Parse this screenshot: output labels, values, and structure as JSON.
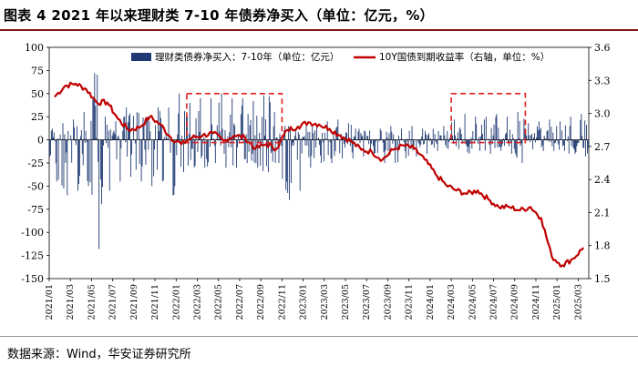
{
  "page": {
    "title": "图表 4   2021 年以来理财类 7-10 年债券净买入（单位：亿元，%）",
    "source": "数据来源：Wind，华安证券研究所"
  },
  "colors": {
    "bar": "#1f3a73",
    "line": "#c00000",
    "box": "#e02020"
  },
  "chart_data": {
    "type": "bar+line",
    "title": "2021 年以来理财类 7-10 年债券净买入（单位：亿元，%）",
    "x_ticks": [
      "2021/01",
      "2021/03",
      "2021/05",
      "2021/07",
      "2021/09",
      "2021/11",
      "2022/01",
      "2022/03",
      "2022/05",
      "2022/07",
      "2022/09",
      "2022/11",
      "2023/01",
      "2023/03",
      "2023/05",
      "2023/07",
      "2023/09",
      "2023/11",
      "2024/01",
      "2024/03",
      "2024/05",
      "2024/07",
      "2024/09",
      "2024/11",
      "2025/01",
      "2025/03"
    ],
    "y_left": {
      "min": -150,
      "max": 100,
      "ticks": [
        100,
        75,
        50,
        25,
        0,
        -25,
        -50,
        -75,
        -100,
        -125,
        -150
      ]
    },
    "y_right": {
      "min": 1.5,
      "max": 3.6,
      "ticks": [
        "3.6",
        "3.3",
        "3.0",
        "2.7",
        "2.4",
        "2.1",
        "1.8",
        "1.5"
      ]
    },
    "legend": [
      "理财类债券净买入：7-10年（单位：亿元）",
      "10Y国债到期收益率（右轴，单位：%）"
    ],
    "series": [
      {
        "name": "理财类债券净买入：7-10年（单位：亿元）",
        "axis": "left",
        "type": "bar",
        "note": "daily net purchases; envelope approximated per month",
        "monthly_envelope": [
          {
            "m": "2021/01",
            "hi": 12,
            "lo": -45
          },
          {
            "m": "2021/02",
            "hi": 18,
            "lo": -60
          },
          {
            "m": "2021/03",
            "hi": 22,
            "lo": -55
          },
          {
            "m": "2021/04",
            "hi": 30,
            "lo": -50
          },
          {
            "m": "2021/05",
            "hi": 72,
            "lo": -118
          },
          {
            "m": "2021/06",
            "hi": 25,
            "lo": -55
          },
          {
            "m": "2021/07",
            "hi": 20,
            "lo": -45
          },
          {
            "m": "2021/08",
            "hi": 35,
            "lo": -40
          },
          {
            "m": "2021/09",
            "hi": 30,
            "lo": -45
          },
          {
            "m": "2021/10",
            "hi": 25,
            "lo": -50
          },
          {
            "m": "2021/11",
            "hi": 35,
            "lo": -45
          },
          {
            "m": "2021/12",
            "hi": 35,
            "lo": -60
          },
          {
            "m": "2022/01",
            "hi": 50,
            "lo": -35
          },
          {
            "m": "2022/02",
            "hi": 40,
            "lo": -30
          },
          {
            "m": "2022/03",
            "hi": 45,
            "lo": -30
          },
          {
            "m": "2022/04",
            "hi": 45,
            "lo": -25
          },
          {
            "m": "2022/05",
            "hi": 50,
            "lo": -30
          },
          {
            "m": "2022/06",
            "hi": 45,
            "lo": -30
          },
          {
            "m": "2022/07",
            "hi": 45,
            "lo": -25
          },
          {
            "m": "2022/08",
            "hi": 42,
            "lo": -30
          },
          {
            "m": "2022/09",
            "hi": 48,
            "lo": -35
          },
          {
            "m": "2022/10",
            "hi": 30,
            "lo": -25
          },
          {
            "m": "2022/11",
            "hi": 15,
            "lo": -65
          },
          {
            "m": "2022/12",
            "hi": 10,
            "lo": -55
          },
          {
            "m": "2023/01",
            "hi": 18,
            "lo": -30
          },
          {
            "m": "2023/02",
            "hi": 15,
            "lo": -25
          },
          {
            "m": "2023/03",
            "hi": 20,
            "lo": -25
          },
          {
            "m": "2023/04",
            "hi": 22,
            "lo": -20
          },
          {
            "m": "2023/05",
            "hi": 18,
            "lo": -20
          },
          {
            "m": "2023/06",
            "hi": 12,
            "lo": -18
          },
          {
            "m": "2023/07",
            "hi": 10,
            "lo": -15
          },
          {
            "m": "2023/08",
            "hi": 12,
            "lo": -25
          },
          {
            "m": "2023/09",
            "hi": 15,
            "lo": -25
          },
          {
            "m": "2023/10",
            "hi": 12,
            "lo": -20
          },
          {
            "m": "2023/11",
            "hi": 15,
            "lo": -18
          },
          {
            "m": "2023/12",
            "hi": 12,
            "lo": -15
          },
          {
            "m": "2024/01",
            "hi": 12,
            "lo": -12
          },
          {
            "m": "2024/02",
            "hi": 15,
            "lo": -10
          },
          {
            "m": "2024/03",
            "hi": 22,
            "lo": -10
          },
          {
            "m": "2024/04",
            "hi": 28,
            "lo": -15
          },
          {
            "m": "2024/05",
            "hi": 25,
            "lo": -12
          },
          {
            "m": "2024/06",
            "hi": 25,
            "lo": -15
          },
          {
            "m": "2024/07",
            "hi": 28,
            "lo": -12
          },
          {
            "m": "2024/08",
            "hi": 25,
            "lo": -15
          },
          {
            "m": "2024/09",
            "hi": 30,
            "lo": -25
          },
          {
            "m": "2024/10",
            "hi": 18,
            "lo": -10
          },
          {
            "m": "2024/11",
            "hi": 20,
            "lo": -12
          },
          {
            "m": "2024/12",
            "hi": 22,
            "lo": -12
          },
          {
            "m": "2025/01",
            "hi": 20,
            "lo": -12
          },
          {
            "m": "2025/02",
            "hi": 25,
            "lo": -15
          },
          {
            "m": "2025/03",
            "hi": 28,
            "lo": -18
          }
        ]
      },
      {
        "name": "10Y国债到期收益率（右轴，单位：%）",
        "axis": "right",
        "type": "line",
        "points": [
          [
            "2021/01",
            3.15
          ],
          [
            "2021/02",
            3.25
          ],
          [
            "2021/03",
            3.27
          ],
          [
            "2021/04",
            3.22
          ],
          [
            "2021/05",
            3.1
          ],
          [
            "2021/06",
            3.1
          ],
          [
            "2021/07",
            2.95
          ],
          [
            "2021/08",
            2.85
          ],
          [
            "2021/09",
            2.87
          ],
          [
            "2021/10",
            2.97
          ],
          [
            "2021/11",
            2.9
          ],
          [
            "2021/12",
            2.78
          ],
          [
            "2022/01",
            2.72
          ],
          [
            "2022/02",
            2.78
          ],
          [
            "2022/03",
            2.8
          ],
          [
            "2022/04",
            2.82
          ],
          [
            "2022/05",
            2.75
          ],
          [
            "2022/06",
            2.8
          ],
          [
            "2022/07",
            2.78
          ],
          [
            "2022/08",
            2.68
          ],
          [
            "2022/09",
            2.72
          ],
          [
            "2022/10",
            2.68
          ],
          [
            "2022/11",
            2.85
          ],
          [
            "2022/12",
            2.88
          ],
          [
            "2023/01",
            2.92
          ],
          [
            "2023/02",
            2.9
          ],
          [
            "2023/03",
            2.86
          ],
          [
            "2023/04",
            2.8
          ],
          [
            "2023/05",
            2.75
          ],
          [
            "2023/06",
            2.67
          ],
          [
            "2023/07",
            2.65
          ],
          [
            "2023/08",
            2.58
          ],
          [
            "2023/09",
            2.67
          ],
          [
            "2023/10",
            2.71
          ],
          [
            "2023/11",
            2.68
          ],
          [
            "2023/12",
            2.58
          ],
          [
            "2024/01",
            2.45
          ],
          [
            "2024/02",
            2.35
          ],
          [
            "2024/03",
            2.3
          ],
          [
            "2024/04",
            2.27
          ],
          [
            "2024/05",
            2.3
          ],
          [
            "2024/06",
            2.22
          ],
          [
            "2024/07",
            2.15
          ],
          [
            "2024/08",
            2.15
          ],
          [
            "2024/09",
            2.12
          ],
          [
            "2024/10",
            2.15
          ],
          [
            "2024/11",
            2.05
          ],
          [
            "2024/12",
            1.7
          ],
          [
            "2025/01",
            1.62
          ],
          [
            "2025/02",
            1.68
          ],
          [
            "2025/03",
            1.78
          ]
        ]
      }
    ],
    "annotations": [
      {
        "type": "dashed-box",
        "from": "2022/02",
        "to": "2022/11",
        "label": ""
      },
      {
        "type": "dashed-box",
        "from": "2024/03",
        "to": "2024/10",
        "label": ""
      }
    ]
  }
}
